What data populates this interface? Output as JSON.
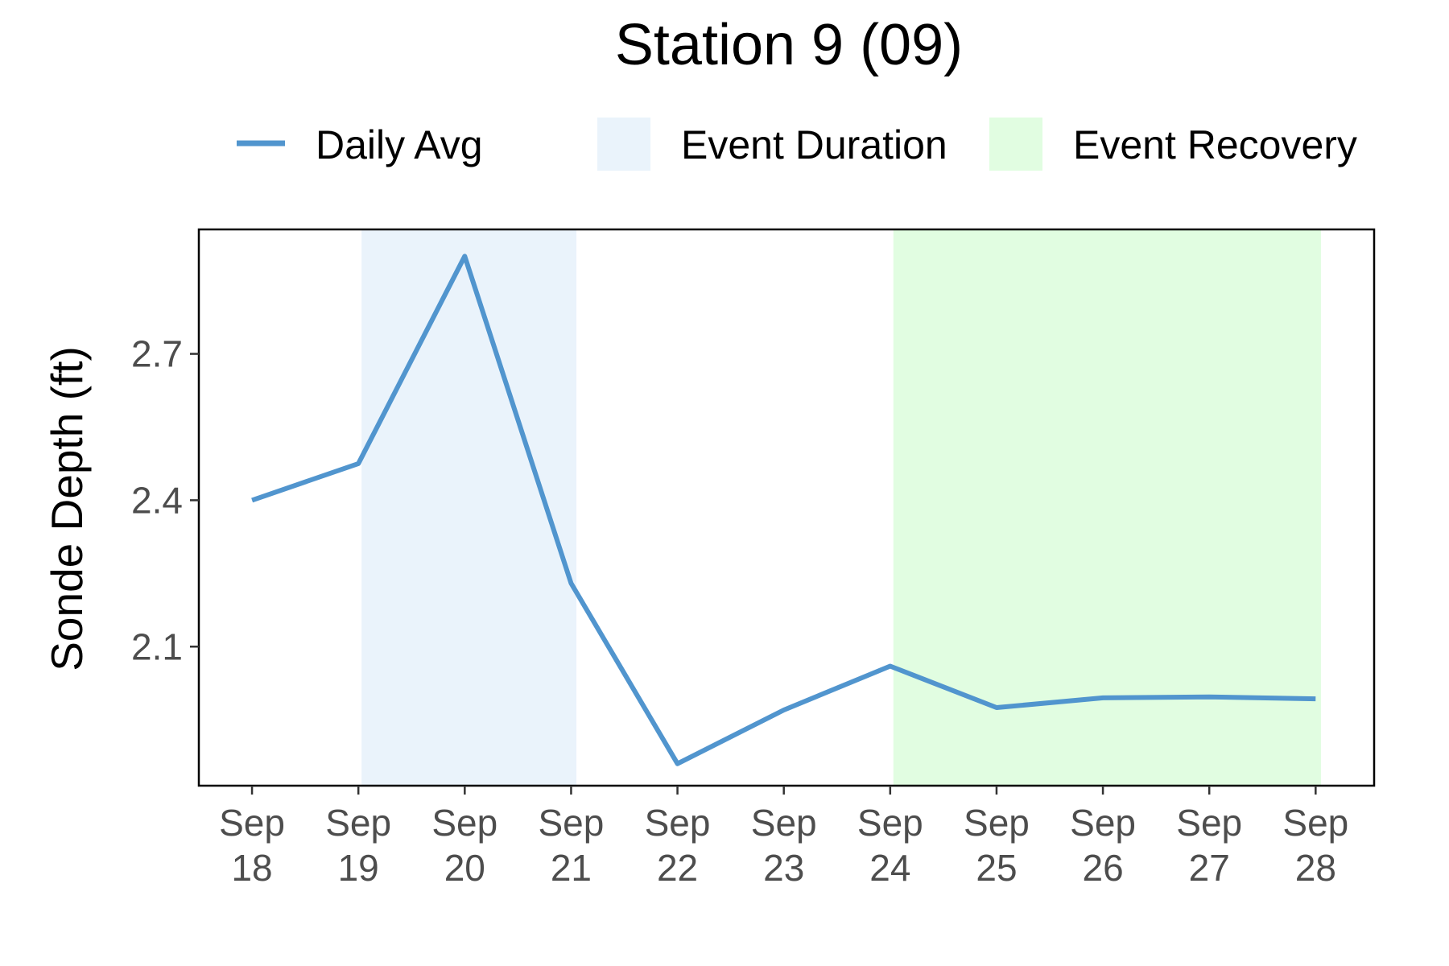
{
  "chart_data": {
    "type": "line",
    "title": "Station 9 (09)",
    "xlabel": "",
    "ylabel": "Sonde Depth (ft)",
    "x_categories": [
      [
        "Sep",
        "18"
      ],
      [
        "Sep",
        "19"
      ],
      [
        "Sep",
        "20"
      ],
      [
        "Sep",
        "21"
      ],
      [
        "Sep",
        "22"
      ],
      [
        "Sep",
        "23"
      ],
      [
        "Sep",
        "24"
      ],
      [
        "Sep",
        "25"
      ],
      [
        "Sep",
        "26"
      ],
      [
        "Sep",
        "27"
      ],
      [
        "Sep",
        "28"
      ]
    ],
    "xlim": [
      17.5,
      28.55
    ],
    "ylim": [
      1.815,
      2.955
    ],
    "yticks": [
      2.1,
      2.4,
      2.7
    ],
    "ytick_labels": [
      "2.1",
      "2.4",
      "2.7"
    ],
    "series": [
      {
        "name": "Daily Avg",
        "color": "#5195CE",
        "x": [
          18,
          19,
          20,
          21,
          22,
          23,
          24,
          25,
          26,
          27,
          28
        ],
        "y": [
          2.4,
          2.475,
          2.9,
          2.23,
          1.86,
          1.97,
          2.06,
          1.975,
          1.995,
          1.997,
          1.993
        ]
      }
    ],
    "shaded_regions": [
      {
        "name": "Event Duration",
        "x_start": 19.03,
        "x_end": 21.05,
        "color": "#EAF3FB"
      },
      {
        "name": "Event Recovery",
        "x_start": 24.03,
        "x_end": 28.05,
        "color": "#E1FDE1"
      }
    ],
    "legend": {
      "position": "top",
      "items": [
        {
          "label": "Daily Avg",
          "kind": "line",
          "color": "#5195CE"
        },
        {
          "label": "Event Duration",
          "kind": "fill",
          "color": "#EAF3FB"
        },
        {
          "label": "Event Recovery",
          "kind": "fill",
          "color": "#E1FDE1"
        }
      ]
    },
    "grid": false
  }
}
